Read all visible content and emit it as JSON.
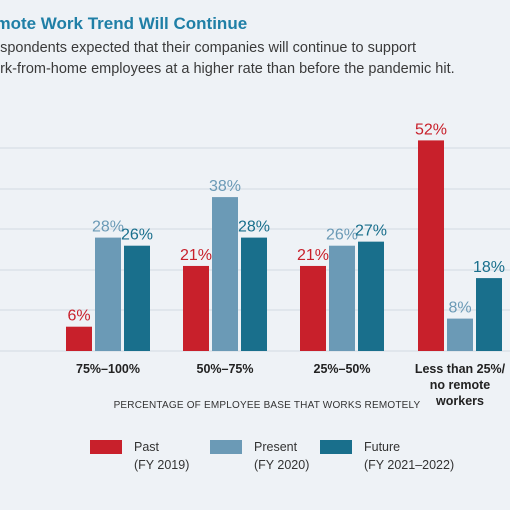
{
  "header": {
    "title": "emote Work Trend Will Continue",
    "subtitle_lines": [
      "espondents expected that their companies will continue to support",
      "ork-from-home employees at a higher rate than before the pandemic hit."
    ]
  },
  "legend": {
    "items": [
      {
        "label": "Past",
        "sub": "(FY 2019)"
      },
      {
        "label": "Present",
        "sub": "(FY 2020)"
      },
      {
        "label": "Future",
        "sub": "(FY 2021–2022)"
      }
    ]
  },
  "chart_data": {
    "type": "bar",
    "title": "",
    "xlabel": "PERCENTAGE OF EMPLOYEE BASE THAT WORKS REMOTELY",
    "ylabel": "",
    "ylim": [
      0,
      52
    ],
    "grid": true,
    "categories": [
      [
        "75%–100%"
      ],
      [
        "50%–75%"
      ],
      [
        "25%–50%"
      ],
      [
        "Less than 25%/",
        "no remote",
        "workers"
      ]
    ],
    "series": [
      {
        "name": "Past",
        "color": "#c8202b",
        "values": [
          6,
          21,
          21,
          52
        ],
        "labels": [
          "6%",
          "21%",
          "21%",
          "52%"
        ]
      },
      {
        "name": "Present",
        "color": "#6b9ab6",
        "values": [
          28,
          38,
          26,
          8
        ],
        "labels": [
          "28%",
          "38%",
          "26%",
          "8%"
        ]
      },
      {
        "name": "Future",
        "color": "#196f8c",
        "values": [
          26,
          28,
          27,
          18
        ],
        "labels": [
          "26%",
          "28%",
          "27%",
          "18%"
        ]
      }
    ]
  }
}
